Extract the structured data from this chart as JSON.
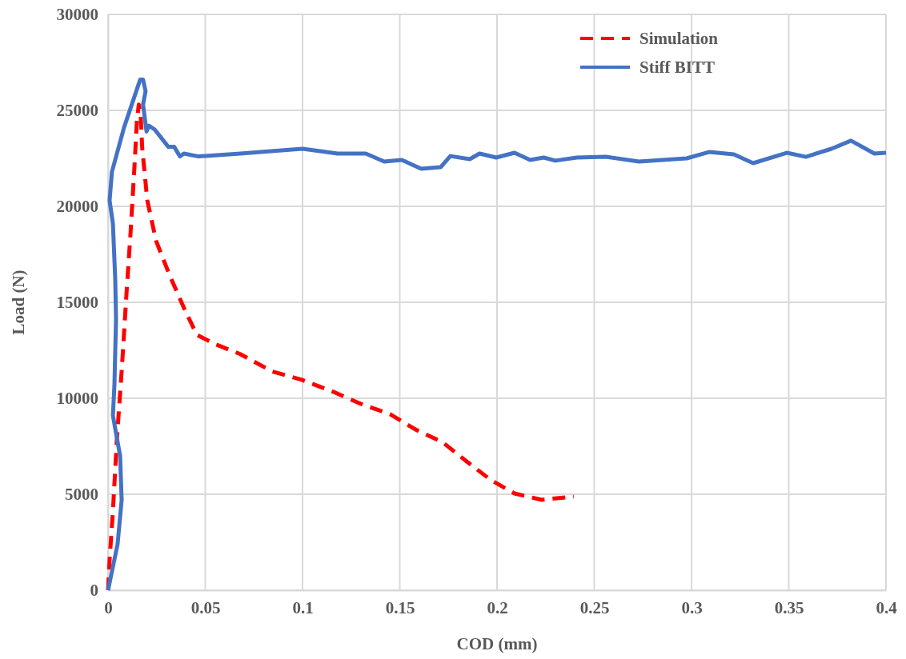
{
  "chart_data": {
    "type": "line",
    "xlabel": "COD (mm)",
    "ylabel": "Load (N)",
    "xlim": [
      0,
      0.4
    ],
    "ylim": [
      0,
      30000
    ],
    "xticks": [
      0,
      0.05,
      0.1,
      0.15,
      0.2,
      0.25,
      0.3,
      0.35,
      0.4
    ],
    "yticks": [
      0,
      5000,
      10000,
      15000,
      20000,
      25000,
      30000
    ],
    "grid": true,
    "legend": "top right",
    "marker": "none",
    "series": [
      {
        "name": "Simulation",
        "color": "#ff0000",
        "line_style": "dashed",
        "x": [
          0,
          0.0008,
          0.0025,
          0.0045,
          0.007,
          0.0097,
          0.0115,
          0.0136,
          0.0148,
          0.0158,
          0.0167,
          0.0176,
          0.0202,
          0.0247,
          0.0317,
          0.0395,
          0.0457,
          0.0556,
          0.068,
          0.0844,
          0.0996,
          0.116,
          0.13,
          0.145,
          0.158,
          0.172,
          0.1844,
          0.1967,
          0.209,
          0.223,
          0.2395
        ],
        "values": [
          0,
          1600,
          4100,
          7800,
          11400,
          15800,
          18500,
          22100,
          24400,
          25300,
          24900,
          23000,
          20300,
          18200,
          16400,
          14600,
          13300,
          12800,
          12300,
          11400,
          10960,
          10330,
          9710,
          9170,
          8380,
          7710,
          6710,
          5750,
          5040,
          4710,
          4880
        ]
      },
      {
        "name": "Stiff BITT",
        "color": "#4472c4",
        "line_style": "solid",
        "x": [
          0,
          0.0049,
          0.007,
          0.0062,
          0.0025,
          0.0033,
          0.0041,
          0.0037,
          0.0025,
          0.0008,
          0.002,
          0.0082,
          0.0165,
          0.018,
          0.0193,
          0.018,
          0.0198,
          0.021,
          0.024,
          0.031,
          0.034,
          0.037,
          0.039,
          0.0465,
          0.068,
          0.1,
          0.118,
          0.1325,
          0.142,
          0.151,
          0.161,
          0.171,
          0.176,
          0.186,
          0.191,
          0.1996,
          0.209,
          0.217,
          0.224,
          0.23,
          0.241,
          0.256,
          0.273,
          0.2975,
          0.309,
          0.3218,
          0.3317,
          0.349,
          0.3588,
          0.372,
          0.382,
          0.394,
          0.4
        ],
        "values": [
          0,
          2400,
          4700,
          7000,
          9100,
          10750,
          14100,
          16200,
          19100,
          20300,
          21800,
          24100,
          26600,
          26600,
          26000,
          25300,
          23900,
          24200,
          24000,
          23100,
          23100,
          22600,
          22750,
          22600,
          22750,
          23000,
          22750,
          22750,
          22330,
          22420,
          21960,
          22040,
          22620,
          22460,
          22750,
          22540,
          22790,
          22420,
          22540,
          22380,
          22540,
          22580,
          22330,
          22500,
          22830,
          22710,
          22250,
          22790,
          22580,
          23000,
          23420,
          22750,
          22790
        ]
      }
    ]
  }
}
